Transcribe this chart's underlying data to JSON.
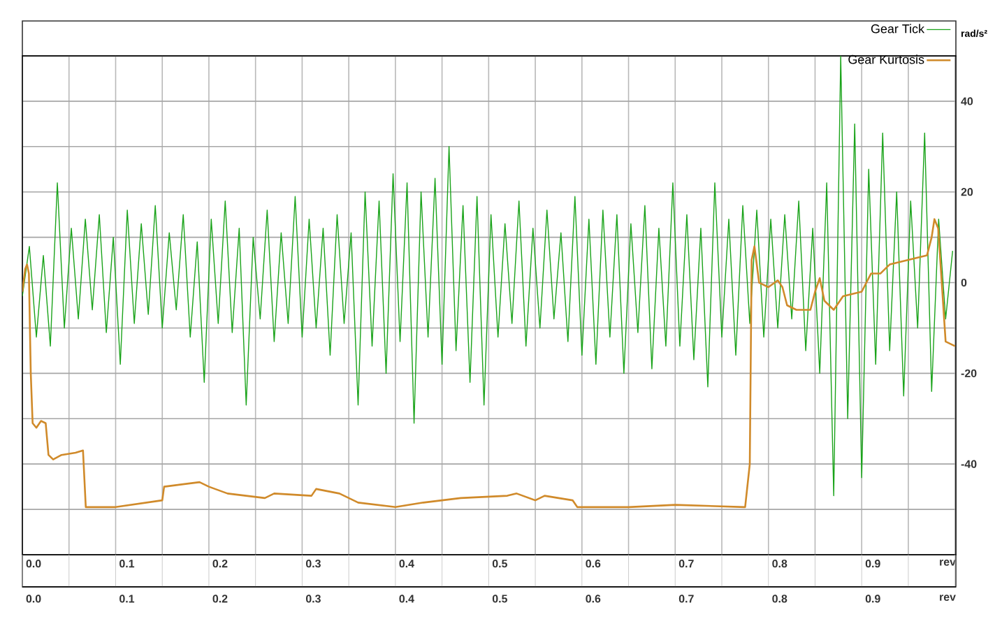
{
  "chart_data": {
    "type": "line",
    "ylabel": "rad/s²",
    "xlim": [
      -0.012,
      0.989
    ],
    "xticks": [
      {
        "value": 0,
        "label": "0.0"
      },
      0.1,
      0.2,
      0.3,
      0.4,
      0.5,
      0.6,
      0.7,
      0.8,
      0.9,
      {
        "value": 0.98,
        "label": "rev"
      }
    ],
    "x2lim": [
      -0.012,
      0.989
    ],
    "x2ticks": [
      {
        "value": 0,
        "label": "0.0"
      },
      0.1,
      0.2,
      0.3,
      0.4,
      0.5,
      0.6,
      0.7,
      0.8,
      0.9,
      {
        "value": 0.98,
        "label": "rev"
      }
    ],
    "ylim": [
      -60,
      50
    ],
    "yticks": [
      {
        "value": -50,
        "label": null
      },
      -40,
      {
        "value": -30,
        "label": null
      },
      -20,
      {
        "value": -10,
        "label": null
      },
      0,
      {
        "value": 10,
        "label": null
      },
      20,
      {
        "value": 30,
        "label": null
      },
      40
    ],
    "grid": true,
    "legend": "top right",
    "marker": "none",
    "line_style": "solid",
    "series": [
      {
        "name": "Gear Tick",
        "color": "#1aa31a",
        "x": [
          -0.012,
          -0.0045,
          0.003,
          0.0105,
          0.018,
          0.0255,
          0.033,
          0.0405,
          0.048,
          0.0555,
          0.063,
          0.0705,
          0.078,
          0.0855,
          0.093,
          0.1005,
          0.108,
          0.1155,
          0.123,
          0.1305,
          0.138,
          0.1455,
          0.153,
          0.1605,
          0.168,
          0.1755,
          0.183,
          0.1905,
          0.198,
          0.2055,
          0.213,
          0.2205,
          0.228,
          0.2355,
          0.243,
          0.2505,
          0.258,
          0.2655,
          0.273,
          0.2805,
          0.288,
          0.2955,
          0.303,
          0.3105,
          0.318,
          0.3255,
          0.333,
          0.3405,
          0.348,
          0.3555,
          0.363,
          0.3705,
          0.378,
          0.3855,
          0.393,
          0.4005,
          0.408,
          0.4155,
          0.423,
          0.4305,
          0.438,
          0.4455,
          0.453,
          0.4605,
          0.468,
          0.4755,
          0.483,
          0.4905,
          0.498,
          0.5055,
          0.513,
          0.5205,
          0.528,
          0.5355,
          0.543,
          0.5505,
          0.558,
          0.5655,
          0.573,
          0.5805,
          0.588,
          0.5955,
          0.603,
          0.6105,
          0.618,
          0.6255,
          0.633,
          0.6405,
          0.648,
          0.6555,
          0.663,
          0.6705,
          0.678,
          0.6855,
          0.693,
          0.7005,
          0.708,
          0.7155,
          0.723,
          0.7305,
          0.738,
          0.7455,
          0.753,
          0.7605,
          0.768,
          0.7755,
          0.783,
          0.7905,
          0.798,
          0.8055,
          0.813,
          0.8205,
          0.828,
          0.8355,
          0.843,
          0.8505,
          0.858,
          0.8655,
          0.873,
          0.8805,
          0.888,
          0.8955,
          0.903,
          0.9105,
          0.918,
          0.9255,
          0.933,
          0.9405,
          0.948,
          0.9555,
          0.963,
          0.9705,
          0.978,
          0.9855
        ],
        "values": [
          -3,
          8,
          -12,
          6,
          -14,
          22,
          -10,
          12,
          -8,
          14,
          -6,
          15,
          -11,
          10,
          -18,
          16,
          -9,
          13,
          -7,
          17,
          -10,
          11,
          -6,
          15,
          -12,
          9,
          -22,
          14,
          -9,
          18,
          -11,
          12,
          -27,
          10,
          -8,
          16,
          -13,
          11,
          -9,
          19,
          -12,
          14,
          -10,
          12,
          -16,
          15,
          -9,
          11,
          -27,
          20,
          -14,
          18,
          -20,
          24,
          -13,
          22,
          -31,
          20,
          -12,
          23,
          -18,
          30,
          -15,
          17,
          -22,
          19,
          -27,
          15,
          -12,
          13,
          -9,
          18,
          -14,
          12,
          -10,
          16,
          -8,
          11,
          -13,
          19,
          -16,
          14,
          -18,
          16,
          -12,
          15,
          -20,
          13,
          -11,
          17,
          -19,
          12,
          -14,
          22,
          -14,
          15,
          -17,
          12,
          -23,
          22,
          -12,
          14,
          -16,
          17,
          -9,
          16,
          -12,
          14,
          -10,
          15,
          -8,
          18,
          -15,
          12,
          -20,
          22,
          -47,
          50,
          -30,
          35,
          -43,
          25,
          -18,
          33,
          -15,
          20,
          -25,
          18,
          -10,
          33,
          -24,
          14,
          -8,
          7
        ]
      },
      {
        "name": "Gear Kurtosis",
        "color": "#d08a2a",
        "x": [
          -0.012,
          -0.009,
          -0.007,
          -0.005,
          -0.003,
          -0.001,
          0.003,
          0.008,
          0.013,
          0.016,
          0.021,
          0.03,
          0.045,
          0.053,
          0.056,
          0.088,
          0.138,
          0.14,
          0.178,
          0.188,
          0.208,
          0.248,
          0.258,
          0.298,
          0.303,
          0.328,
          0.348,
          0.388,
          0.418,
          0.458,
          0.508,
          0.518,
          0.538,
          0.548,
          0.578,
          0.583,
          0.638,
          0.688,
          0.763,
          0.768,
          0.77,
          0.773,
          0.778,
          0.788,
          0.798,
          0.803,
          0.808,
          0.818,
          0.833,
          0.838,
          0.843,
          0.848,
          0.858,
          0.868,
          0.888,
          0.898,
          0.908,
          0.918,
          0.938,
          0.958,
          0.963,
          0.966,
          0.97,
          0.978,
          0.988
        ],
        "values": [
          -2,
          3,
          4,
          2,
          -20,
          -31,
          -32,
          -30.5,
          -31,
          -38,
          -39,
          -38,
          -37.5,
          -37,
          -49.5,
          -49.5,
          -48,
          -45,
          -44,
          -45,
          -46.5,
          -47.5,
          -46.5,
          -47,
          -45.5,
          -46.5,
          -48.5,
          -49.5,
          -48.5,
          -47.5,
          -47,
          -46.5,
          -48,
          -47,
          -48,
          -49.5,
          -49.5,
          -49,
          -49.5,
          -40,
          5,
          8,
          0,
          -1,
          0.5,
          -1,
          -5,
          -6,
          -6,
          -2,
          1,
          -4,
          -6,
          -3,
          -2,
          2,
          2,
          4,
          5,
          6,
          10,
          14,
          12,
          -13,
          -14
        ]
      }
    ]
  }
}
